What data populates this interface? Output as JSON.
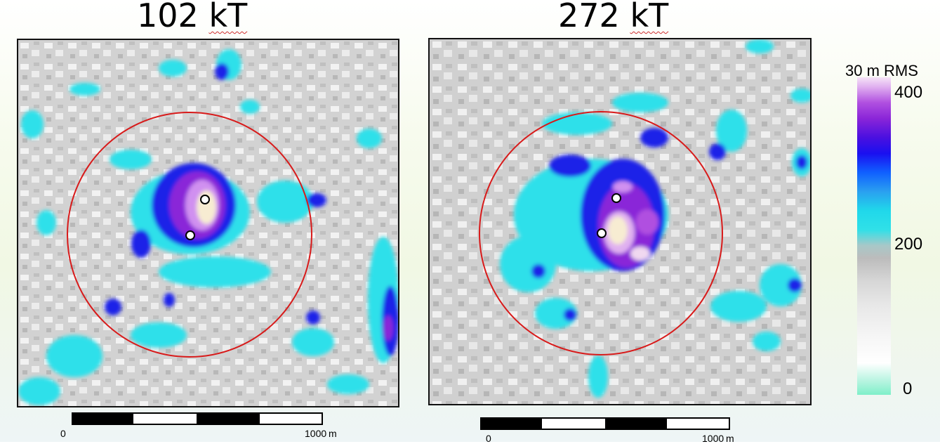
{
  "panels": [
    {
      "title_value": "102",
      "title_unit": "kT",
      "scalebar": {
        "start_label": "0",
        "end_label": "1000",
        "unit": "m"
      }
    },
    {
      "title_value": "272",
      "title_unit": "kT",
      "scalebar": {
        "start_label": "0",
        "end_label": "1000",
        "unit": "m"
      }
    }
  ],
  "colorbar": {
    "title": "30 m RMS",
    "tick_labels": [
      "400",
      "200",
      "0"
    ]
  },
  "colors": {
    "circle": "#d81a1a",
    "cyan": "#2ee0ea",
    "blue": "#1a22e8",
    "purple": "#8a25d8",
    "core": "#f7ecd2"
  }
}
